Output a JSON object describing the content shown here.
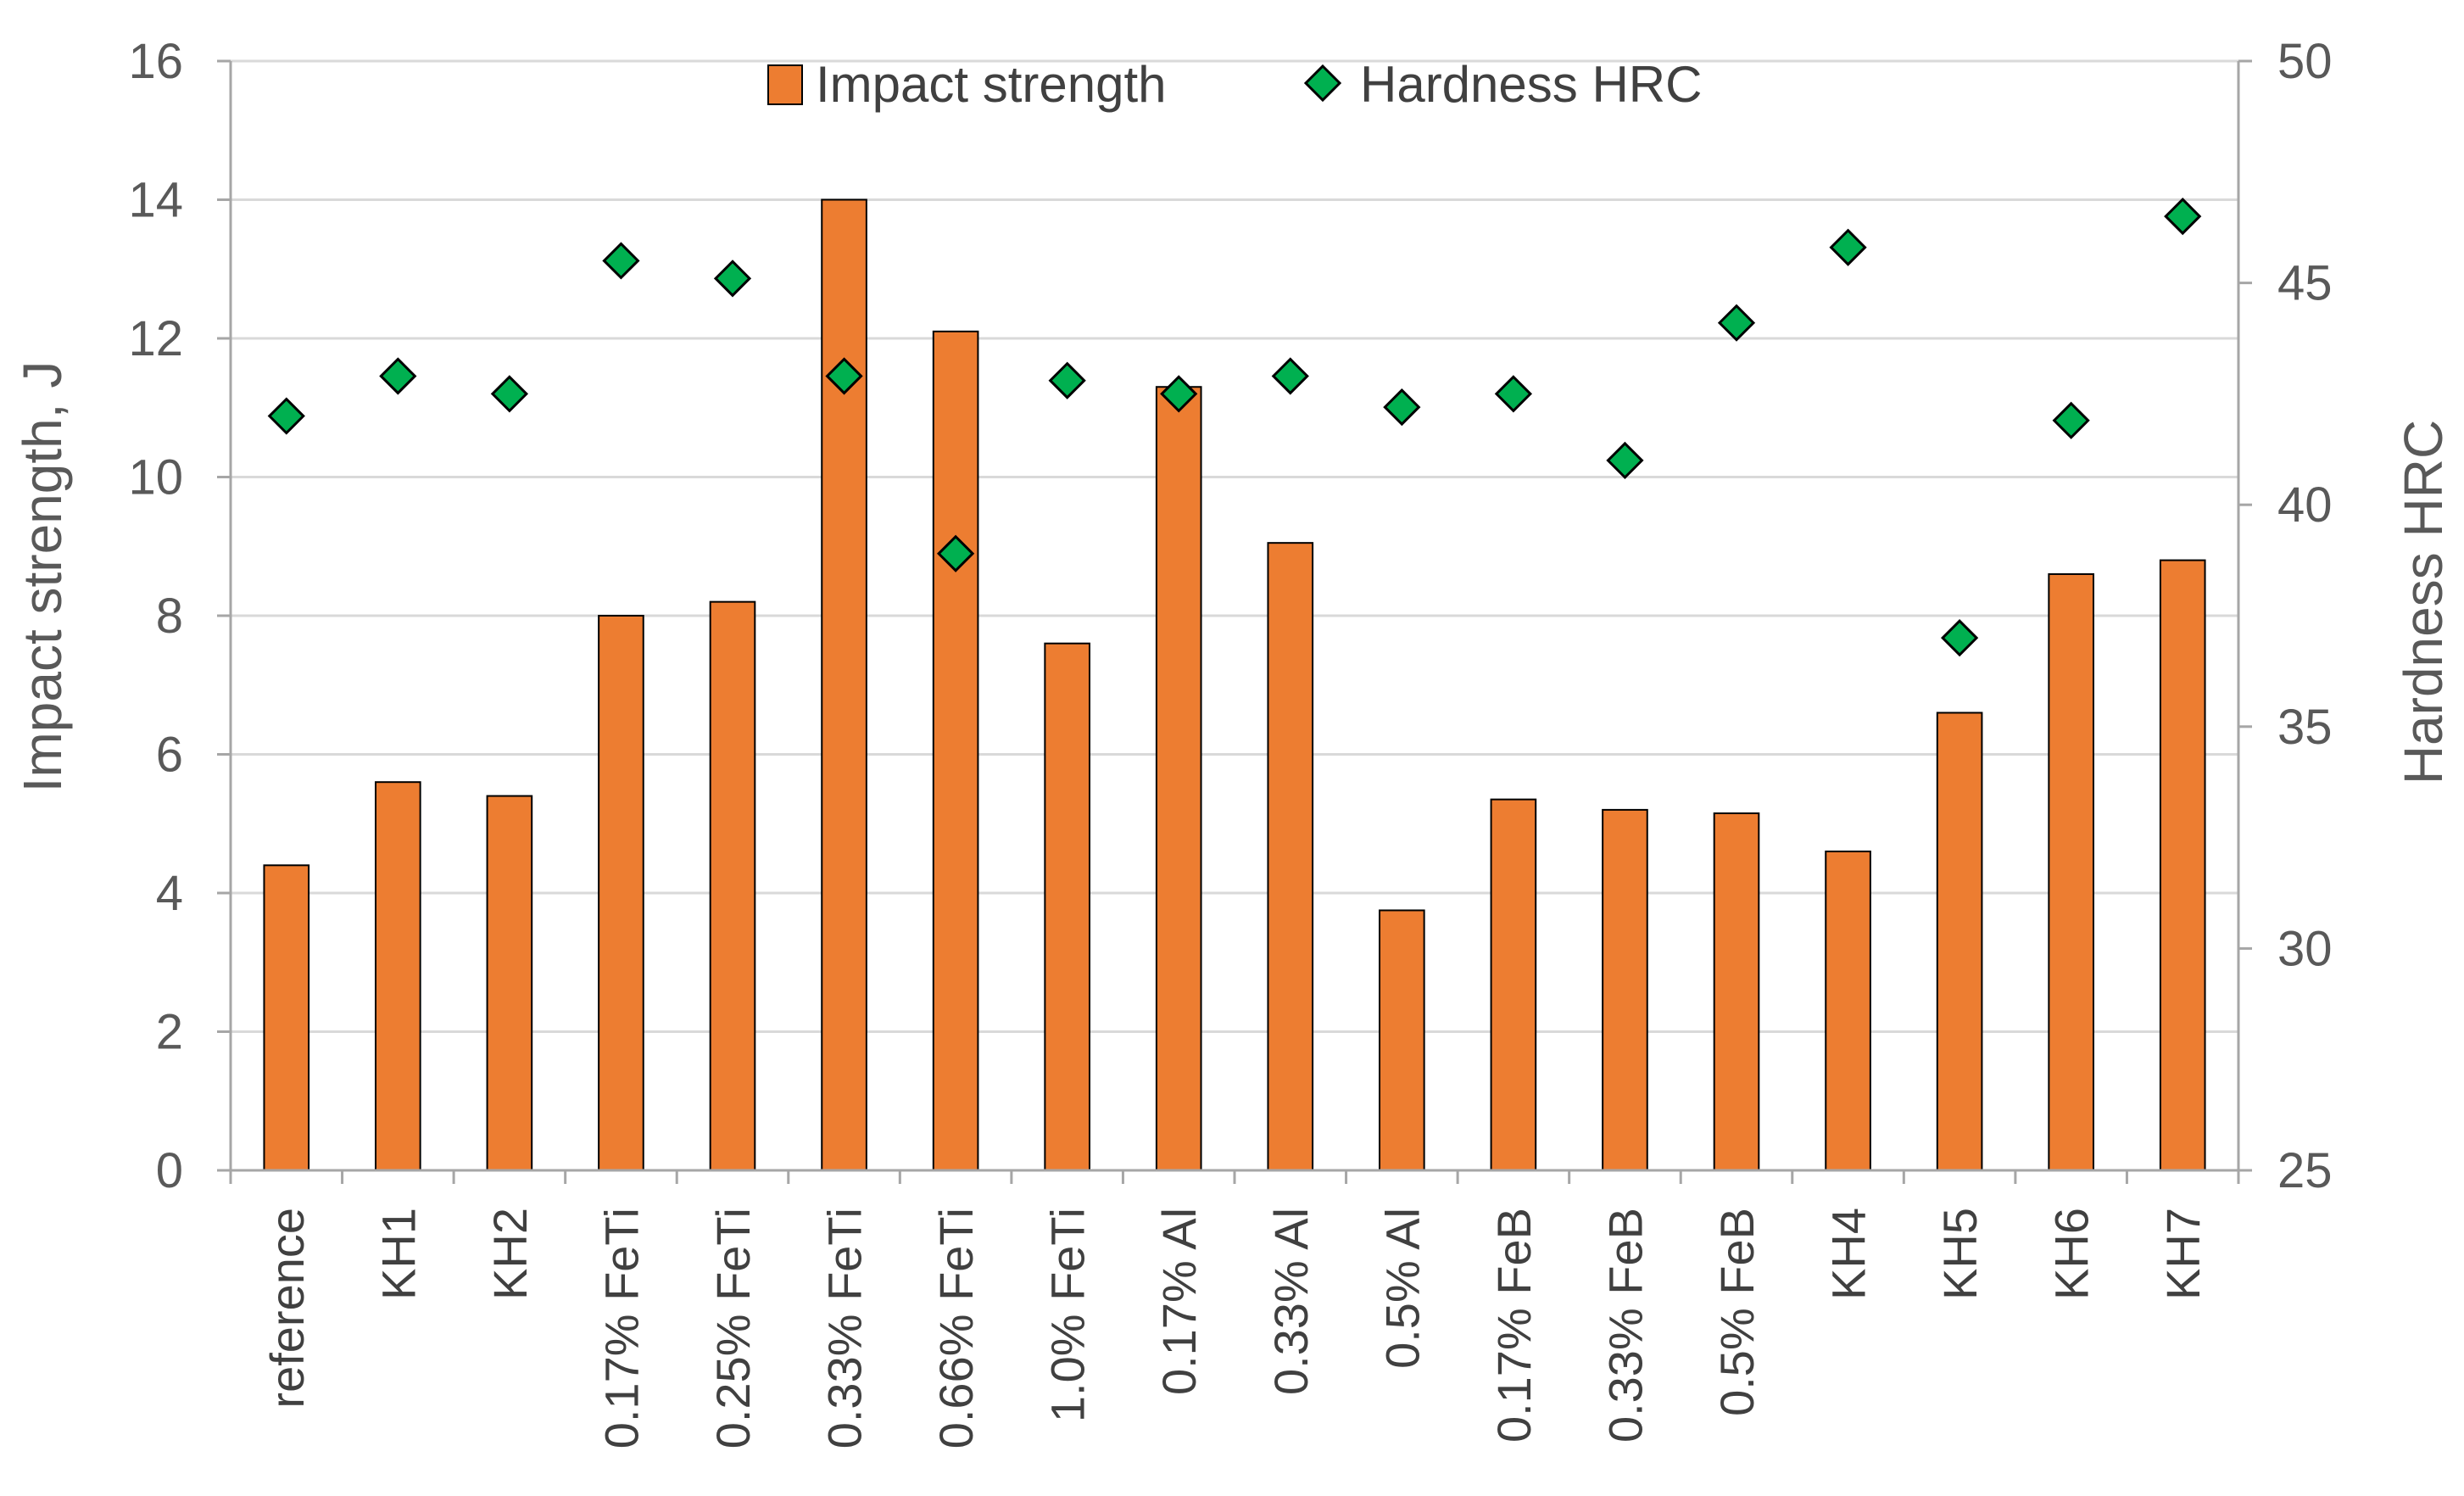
{
  "chart_data": {
    "type": "bar",
    "title": "",
    "categories": [
      "reference",
      "KH1",
      "KH2",
      "0.17% FeTi",
      "0.25% FeTi",
      "0.33% FeTi",
      "0.66% FeTi",
      "1.0% FeTi",
      "0.17% Al",
      "0.33% Al",
      "0.5% Al",
      "0.17% FeB",
      "0.33% FeB",
      "0.5% FeB",
      "KH4",
      "KH5",
      "KH6",
      "KH7"
    ],
    "series": [
      {
        "name": "Impact strength",
        "type": "bar",
        "axis": "left",
        "color": "#ED7D31",
        "values": [
          4.4,
          5.6,
          5.4,
          8.0,
          8.2,
          14.0,
          12.1,
          7.6,
          11.3,
          9.05,
          3.75,
          5.35,
          5.2,
          5.15,
          4.6,
          6.6,
          8.6,
          8.8
        ]
      },
      {
        "name": "Hardness HRC",
        "type": "scatter",
        "axis": "right",
        "color": "#00B050",
        "values": [
          42.0,
          42.9,
          42.5,
          45.5,
          45.1,
          42.9,
          38.9,
          42.8,
          42.5,
          42.9,
          42.2,
          42.5,
          41.0,
          44.1,
          45.8,
          37.0,
          41.9,
          46.5
        ]
      }
    ],
    "ylabel": "Impact strength, J",
    "y2label": "Hardness HRC",
    "xlabel": "",
    "ylim": [
      0,
      16
    ],
    "y2lim": [
      25,
      50
    ],
    "yticks": [
      "0",
      "2",
      "4",
      "6",
      "8",
      "10",
      "12",
      "14",
      "16"
    ],
    "y2ticks": [
      "25",
      "30",
      "35",
      "40",
      "45",
      "50"
    ],
    "grid": true,
    "legend": "top-center"
  }
}
